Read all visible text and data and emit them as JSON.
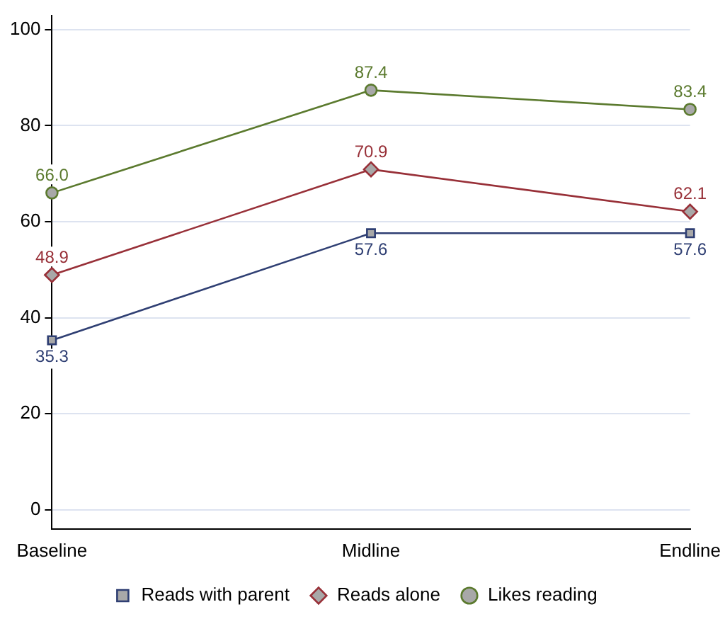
{
  "chart_data": {
    "type": "line",
    "categories": [
      "Baseline",
      "Midline",
      "Endline"
    ],
    "series": [
      {
        "name": "Reads with parent",
        "color": "#2f3f73",
        "marker": "square",
        "values": [
          35.3,
          57.6,
          57.6
        ],
        "value_labels": [
          "35.3",
          "57.6",
          "57.6"
        ]
      },
      {
        "name": "Reads alone",
        "color": "#983038",
        "marker": "diamond",
        "values": [
          48.9,
          70.9,
          62.1
        ],
        "value_labels": [
          "48.9",
          "70.9",
          "62.1"
        ]
      },
      {
        "name": "Likes reading",
        "color": "#5b7a2e",
        "marker": "circle",
        "values": [
          66.0,
          87.4,
          83.4
        ],
        "value_labels": [
          "66.0",
          "87.4",
          "83.4"
        ]
      }
    ],
    "ylim": [
      -4,
      103
    ],
    "yticks": [
      0,
      20,
      40,
      60,
      80,
      100
    ],
    "grid": "y",
    "legend": "bottom"
  }
}
